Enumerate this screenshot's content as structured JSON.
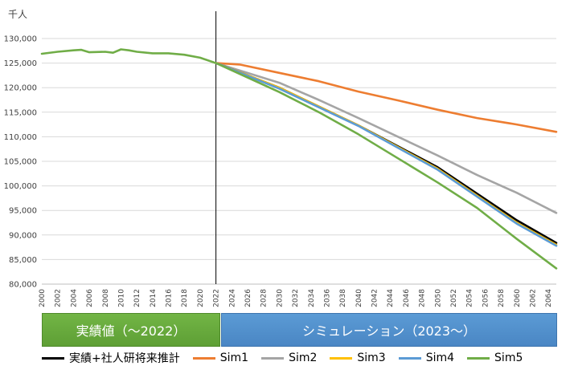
{
  "chart_data": {
    "type": "line",
    "unit_label": "千人",
    "ylim": [
      80000,
      130000
    ],
    "yticks": [
      80000,
      85000,
      90000,
      95000,
      100000,
      105000,
      110000,
      115000,
      120000,
      125000,
      130000
    ],
    "ytick_labels": [
      "80,000",
      "85,000",
      "90,000",
      "95,000",
      "100,000",
      "105,000",
      "110,000",
      "115,000",
      "120,000",
      "125,000",
      "130,000"
    ],
    "xlim": [
      2000,
      2065
    ],
    "xtick_labels": [
      "2000",
      "2002",
      "2004",
      "2006",
      "2008",
      "2010",
      "2012",
      "2014",
      "2016",
      "2018",
      "2020",
      "2022",
      "2024",
      "2026",
      "2028",
      "2030",
      "2032",
      "2034",
      "2036",
      "2038",
      "2040",
      "2042",
      "2044",
      "2046",
      "2048",
      "2050",
      "2052",
      "2054",
      "2056",
      "2058",
      "2060",
      "2062",
      "2064"
    ],
    "divider_year": 2022,
    "grid": true,
    "legend_position": "bottom",
    "series": [
      {
        "name": "実績+社人研将来推計",
        "color": "#000000",
        "x": [
          2022,
          2030,
          2040,
          2050,
          2060,
          2065
        ],
        "y": [
          125000,
          120000,
          112300,
          103800,
          93000,
          88400
        ]
      },
      {
        "name": "Sim1",
        "color": "#ed7d31",
        "x": [
          2022,
          2025,
          2030,
          2035,
          2040,
          2045,
          2050,
          2055,
          2060,
          2065
        ],
        "y": [
          125000,
          124700,
          123000,
          121300,
          119200,
          117400,
          115500,
          113800,
          112500,
          111000
        ]
      },
      {
        "name": "Sim2",
        "color": "#a5a5a5",
        "x": [
          2022,
          2030,
          2035,
          2040,
          2045,
          2050,
          2055,
          2060,
          2065
        ],
        "y": [
          125000,
          121000,
          117500,
          113800,
          110000,
          106200,
          102200,
          98600,
          94500
        ]
      },
      {
        "name": "Sim3",
        "color": "#ffc000",
        "x": [
          2022,
          2030,
          2040,
          2050,
          2060,
          2065
        ],
        "y": [
          125000,
          120000,
          112300,
          103500,
          92500,
          88000
        ]
      },
      {
        "name": "Sim4",
        "color": "#5b9bd5",
        "x": [
          2022,
          2030,
          2040,
          2050,
          2060,
          2065
        ],
        "y": [
          125000,
          119800,
          112200,
          103300,
          92300,
          87800
        ]
      },
      {
        "name": "Sim5",
        "color": "#70ad47",
        "x": [
          2000,
          2002,
          2004,
          2005,
          2006,
          2008,
          2009,
          2010,
          2011,
          2012,
          2014,
          2016,
          2018,
          2020,
          2022,
          2030,
          2035,
          2040,
          2045,
          2050,
          2055,
          2060,
          2065
        ],
        "y": [
          126900,
          127300,
          127600,
          127700,
          127200,
          127300,
          127100,
          127800,
          127600,
          127300,
          127000,
          127000,
          126700,
          126100,
          125000,
          119100,
          115000,
          110500,
          105600,
          100700,
          95500,
          89200,
          83200
        ]
      }
    ]
  },
  "banners": {
    "actual": "実績値（～2022）",
    "simulation": "シミュレーション（2023～）"
  }
}
